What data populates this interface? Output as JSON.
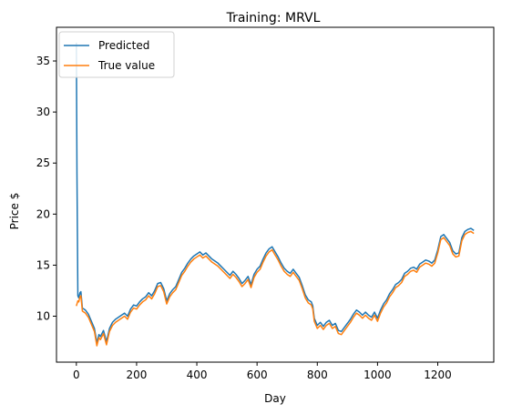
{
  "chart_data": {
    "type": "line",
    "title": "Training: MRVL",
    "xlabel": "Day",
    "ylabel": "Price $",
    "xlim": [
      -66,
      1386
    ],
    "ylim": [
      5.5,
      38.3
    ],
    "xticks": [
      0,
      200,
      400,
      600,
      800,
      1000,
      1200
    ],
    "yticks": [
      10,
      15,
      20,
      25,
      30,
      35
    ],
    "grid": false,
    "legend_position": "top-left",
    "series": [
      {
        "name": "Predicted",
        "color": "#1f77b4",
        "x": [
          0,
          2,
          5,
          8,
          12,
          15,
          20,
          30,
          40,
          50,
          60,
          68,
          75,
          80,
          90,
          100,
          110,
          120,
          130,
          140,
          150,
          160,
          170,
          180,
          190,
          200,
          210,
          220,
          230,
          240,
          250,
          260,
          270,
          280,
          290,
          300,
          310,
          320,
          330,
          340,
          350,
          360,
          370,
          380,
          390,
          400,
          410,
          420,
          430,
          440,
          450,
          460,
          470,
          480,
          490,
          500,
          510,
          520,
          530,
          540,
          550,
          560,
          570,
          580,
          590,
          600,
          610,
          620,
          630,
          640,
          650,
          660,
          670,
          680,
          690,
          700,
          710,
          720,
          730,
          740,
          750,
          760,
          770,
          780,
          785,
          790,
          800,
          810,
          820,
          830,
          840,
          850,
          860,
          870,
          880,
          890,
          900,
          910,
          920,
          930,
          940,
          950,
          960,
          970,
          980,
          990,
          1000,
          1010,
          1020,
          1030,
          1040,
          1050,
          1060,
          1070,
          1080,
          1090,
          1100,
          1110,
          1120,
          1130,
          1140,
          1150,
          1160,
          1170,
          1180,
          1190,
          1200,
          1210,
          1220,
          1230,
          1240,
          1250,
          1260,
          1270,
          1280,
          1290,
          1300,
          1310,
          1320
        ],
        "y": [
          36.8,
          24.0,
          12.0,
          11.8,
          12.3,
          12.4,
          10.8,
          10.6,
          10.2,
          9.5,
          8.8,
          7.4,
          8.2,
          8.0,
          8.6,
          7.5,
          8.8,
          9.4,
          9.7,
          9.9,
          10.1,
          10.3,
          10.0,
          10.7,
          11.1,
          11.0,
          11.4,
          11.7,
          11.9,
          12.3,
          12.0,
          12.5,
          13.2,
          13.3,
          12.7,
          11.5,
          12.2,
          12.6,
          12.9,
          13.6,
          14.3,
          14.7,
          15.2,
          15.6,
          15.9,
          16.1,
          16.3,
          16.0,
          16.2,
          15.9,
          15.6,
          15.4,
          15.2,
          14.9,
          14.6,
          14.3,
          14.0,
          14.4,
          14.1,
          13.7,
          13.2,
          13.5,
          13.9,
          13.1,
          14.1,
          14.6,
          14.9,
          15.6,
          16.2,
          16.6,
          16.8,
          16.3,
          15.8,
          15.2,
          14.7,
          14.4,
          14.2,
          14.6,
          14.2,
          13.8,
          13.0,
          12.1,
          11.6,
          11.4,
          11.0,
          9.8,
          9.1,
          9.4,
          9.0,
          9.4,
          9.6,
          9.1,
          9.3,
          8.6,
          8.5,
          8.9,
          9.3,
          9.7,
          10.2,
          10.6,
          10.4,
          10.1,
          10.4,
          10.1,
          9.9,
          10.4,
          9.8,
          10.6,
          11.2,
          11.6,
          12.2,
          12.6,
          13.1,
          13.3,
          13.6,
          14.2,
          14.4,
          14.7,
          14.8,
          14.6,
          15.1,
          15.3,
          15.5,
          15.4,
          15.2,
          15.5,
          16.5,
          17.8,
          18.0,
          17.6,
          17.2,
          16.4,
          16.1,
          16.2,
          17.7,
          18.3,
          18.5,
          18.6,
          18.4
        ]
      },
      {
        "name": "True value",
        "color": "#ff7f0e",
        "x": [
          0,
          5,
          8,
          12,
          15,
          20,
          30,
          40,
          50,
          60,
          68,
          75,
          80,
          90,
          100,
          110,
          120,
          130,
          140,
          150,
          160,
          170,
          180,
          190,
          200,
          210,
          220,
          230,
          240,
          250,
          260,
          270,
          280,
          290,
          300,
          310,
          320,
          330,
          340,
          350,
          360,
          370,
          380,
          390,
          400,
          410,
          420,
          430,
          440,
          450,
          460,
          470,
          480,
          490,
          500,
          510,
          520,
          530,
          540,
          550,
          560,
          570,
          580,
          590,
          600,
          610,
          620,
          630,
          640,
          650,
          660,
          670,
          680,
          690,
          700,
          710,
          720,
          730,
          740,
          750,
          760,
          770,
          780,
          785,
          790,
          800,
          810,
          820,
          830,
          840,
          850,
          860,
          870,
          880,
          890,
          900,
          910,
          920,
          930,
          940,
          950,
          960,
          970,
          980,
          990,
          1000,
          1010,
          1020,
          1030,
          1040,
          1050,
          1060,
          1070,
          1080,
          1090,
          1100,
          1110,
          1120,
          1130,
          1140,
          1150,
          1160,
          1170,
          1180,
          1190,
          1200,
          1210,
          1220,
          1230,
          1240,
          1250,
          1260,
          1270,
          1280,
          1290,
          1300,
          1310,
          1320
        ],
        "y": [
          11.0,
          11.5,
          11.4,
          11.9,
          12.0,
          10.5,
          10.3,
          9.9,
          9.2,
          8.5,
          7.1,
          7.9,
          7.7,
          8.3,
          7.2,
          8.5,
          9.1,
          9.4,
          9.6,
          9.8,
          10.0,
          9.7,
          10.4,
          10.8,
          10.7,
          11.1,
          11.4,
          11.6,
          12.0,
          11.7,
          12.2,
          12.9,
          13.0,
          12.4,
          11.2,
          11.9,
          12.3,
          12.6,
          13.3,
          14.0,
          14.4,
          14.9,
          15.3,
          15.6,
          15.8,
          16.0,
          15.7,
          15.9,
          15.6,
          15.3,
          15.1,
          14.9,
          14.6,
          14.3,
          14.0,
          13.7,
          14.1,
          13.8,
          13.4,
          12.9,
          13.2,
          13.6,
          12.8,
          13.8,
          14.3,
          14.6,
          15.3,
          15.9,
          16.3,
          16.5,
          16.0,
          15.5,
          14.9,
          14.4,
          14.1,
          13.9,
          14.3,
          13.9,
          13.5,
          12.7,
          11.8,
          11.3,
          11.1,
          10.7,
          9.5,
          8.8,
          9.1,
          8.7,
          9.1,
          9.3,
          8.8,
          9.0,
          8.3,
          8.2,
          8.6,
          9.0,
          9.4,
          9.9,
          10.3,
          10.1,
          9.8,
          10.1,
          9.8,
          9.6,
          10.1,
          9.5,
          10.3,
          10.9,
          11.3,
          11.9,
          12.3,
          12.8,
          13.0,
          13.3,
          13.9,
          14.1,
          14.4,
          14.5,
          14.3,
          14.8,
          15.0,
          15.2,
          15.1,
          14.9,
          15.2,
          16.2,
          17.5,
          17.7,
          17.3,
          16.9,
          16.1,
          15.8,
          15.9,
          17.4,
          18.0,
          18.2,
          18.3,
          18.1
        ]
      }
    ]
  }
}
